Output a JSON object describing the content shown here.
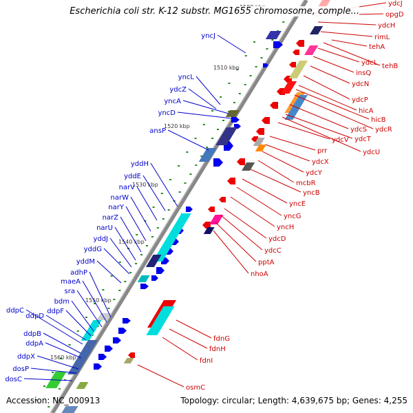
{
  "title": "Escherichia coli str. K-12 substr. MG1655 chromosome, comple...",
  "footer": {
    "accession": "Accession: NC_000913",
    "topology": "Topology: circular; Length: 4,639,675 bp; Genes: 4,255"
  },
  "scale": {
    "ticks": [
      {
        "label": "1500 kbp",
        "mark": [
          373,
          12
        ]
      },
      {
        "label": "1510 kbp",
        "mark": [
          380,
          99
        ]
      },
      {
        "label": "1520 kbp",
        "mark": [
          301,
          183
        ]
      },
      {
        "label": "1530 kbp",
        "mark": [
          243,
          268
        ]
      },
      {
        "label": "1540 kbp",
        "mark": [
          209,
          351
        ]
      },
      {
        "label": "1550 kbp",
        "mark": [
          163,
          436
        ]
      },
      {
        "label": "1560 kbp",
        "mark": [
          110,
          519
        ]
      }
    ]
  },
  "genes_left": [
    {
      "name": "yncJ",
      "target": [
        357,
        77
      ]
    },
    {
      "name": "yncL",
      "target": [
        320,
        152
      ]
    },
    {
      "name": "ydcZ",
      "target": [
        314,
        158
      ]
    },
    {
      "name": "yncA",
      "target": [
        332,
        165
      ]
    },
    {
      "name": "yncD",
      "target": [
        336,
        172
      ]
    },
    {
      "name": "ansP",
      "target": [
        303,
        218
      ]
    },
    {
      "name": "yddH",
      "target": [
        258,
        300
      ]
    },
    {
      "name": "yddE",
      "target": [
        240,
        306
      ]
    },
    {
      "name": "narV",
      "target": [
        228,
        320
      ]
    },
    {
      "name": "narW",
      "target": [
        219,
        336
      ]
    },
    {
      "name": "narY",
      "target": [
        212,
        350
      ]
    },
    {
      "name": "narZ",
      "target": [
        205,
        366
      ]
    },
    {
      "name": "narU",
      "target": [
        197,
        378
      ]
    },
    {
      "name": "yddJ",
      "target": [
        191,
        388
      ]
    },
    {
      "name": "yddG",
      "target": [
        188,
        398
      ]
    },
    {
      "name": "yddM",
      "target": [
        176,
        411
      ]
    },
    {
      "name": "adhP",
      "target": [
        161,
        461
      ]
    },
    {
      "name": "maeA",
      "target": [
        155,
        468
      ]
    },
    {
      "name": "sra",
      "target": [
        148,
        475
      ]
    },
    {
      "name": "bdm",
      "target": [
        136,
        481
      ]
    },
    {
      "name": "ddpF",
      "target": [
        132,
        488
      ]
    },
    {
      "name": "ddpC",
      "target": [
        120,
        500
      ]
    },
    {
      "name": "ddpD",
      "target": [
        125,
        494
      ]
    },
    {
      "name": "ddpB",
      "target": [
        117,
        513
      ]
    },
    {
      "name": "ddpA",
      "target": [
        118,
        520
      ]
    },
    {
      "name": "ddpX",
      "target": [
        114,
        536
      ]
    },
    {
      "name": "dosP",
      "target": [
        111,
        542
      ]
    },
    {
      "name": "dosC",
      "target": [
        105,
        553
      ]
    }
  ],
  "genes_right": [
    {
      "name": "ydcJ",
      "target": [
        455,
        20
      ]
    },
    {
      "name": "opgD",
      "target": [
        475,
        22
      ]
    },
    {
      "name": "ydcH",
      "target": [
        462,
        32
      ]
    },
    {
      "name": "rimL",
      "target": [
        466,
        46
      ]
    },
    {
      "name": "tehA",
      "target": [
        482,
        58
      ]
    },
    {
      "name": "tehB",
      "target": [
        470,
        62
      ]
    },
    {
      "name": "ydcL",
      "target": [
        462,
        70
      ]
    },
    {
      "name": "insQ",
      "target": [
        455,
        82
      ]
    },
    {
      "name": "ydcN",
      "target": [
        451,
        96
      ]
    },
    {
      "name": "ydcP",
      "target": [
        441,
        110
      ]
    },
    {
      "name": "hicA",
      "target": [
        434,
        124
      ]
    },
    {
      "name": "hicB",
      "target": [
        430,
        130
      ]
    },
    {
      "name": "ydcR",
      "target": [
        428,
        138
      ]
    },
    {
      "name": "ydcS",
      "target": [
        421,
        152
      ]
    },
    {
      "name": "ydcT",
      "target": [
        415,
        166
      ]
    },
    {
      "name": "ydcV",
      "target": [
        404,
        178
      ]
    },
    {
      "name": "ydcU",
      "target": [
        410,
        170
      ]
    },
    {
      "name": "prr",
      "target": [
        392,
        198
      ]
    },
    {
      "name": "ydcX",
      "target": [
        386,
        210
      ]
    },
    {
      "name": "ydcY",
      "target": [
        381,
        220
      ]
    },
    {
      "name": "mcbR",
      "target": [
        375,
        233
      ]
    },
    {
      "name": "yncB",
      "target": [
        364,
        246
      ]
    },
    {
      "name": "yncE",
      "target": [
        352,
        260
      ]
    },
    {
      "name": "yncG",
      "target": [
        344,
        272
      ]
    },
    {
      "name": "yncH",
      "target": [
        335,
        286
      ]
    },
    {
      "name": "ydcD",
      "target": [
        326,
        303
      ]
    },
    {
      "name": "ydcC",
      "target": [
        320,
        312
      ]
    },
    {
      "name": "pptA",
      "target": [
        313,
        323
      ]
    },
    {
      "name": "nhoA",
      "target": [
        310,
        335
      ]
    },
    {
      "name": "fdnG",
      "target": [
        256,
        465
      ]
    },
    {
      "name": "fdnH",
      "target": [
        246,
        478
      ]
    },
    {
      "name": "fdnI",
      "target": [
        236,
        490
      ]
    },
    {
      "name": "osmC",
      "target": [
        200,
        530
      ]
    }
  ],
  "colors": {
    "left_label": "#0000cc",
    "right_label": "#cc0000",
    "backbone": "#888888",
    "tick": "#228b22"
  }
}
